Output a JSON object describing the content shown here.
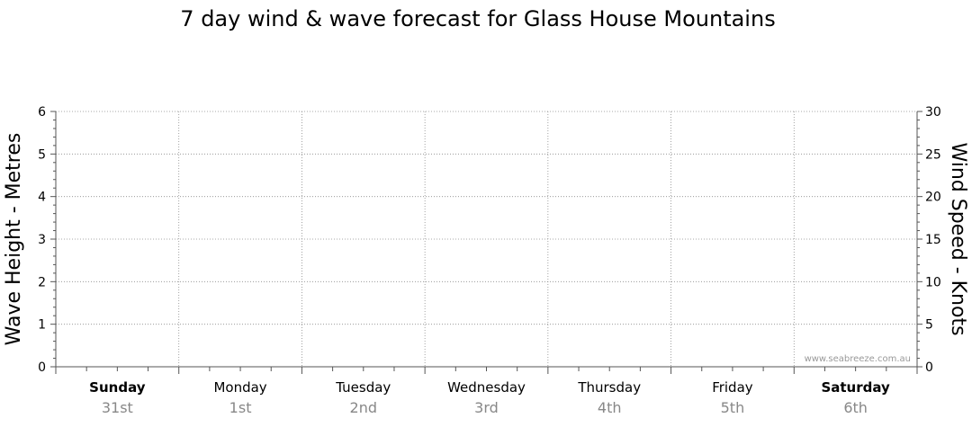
{
  "chart_data": {
    "type": "line",
    "title": "7 day wind & wave forecast for Glass House Mountains",
    "ylabel_left": "Wave Height - Metres",
    "ylabel_right": "Wind Speed - Knots",
    "ylim_left": [
      0,
      6
    ],
    "ylim_right": [
      0,
      30
    ],
    "yticks_left": [
      "0",
      "1",
      "2",
      "3",
      "4",
      "5",
      "6"
    ],
    "yticks_right": [
      "0",
      "5",
      "10",
      "15",
      "20",
      "25",
      "30"
    ],
    "grid": true,
    "days": [
      {
        "name": "Sunday",
        "date": "31st",
        "bold": true
      },
      {
        "name": "Monday",
        "date": "1st",
        "bold": false
      },
      {
        "name": "Tuesday",
        "date": "2nd",
        "bold": false
      },
      {
        "name": "Wednesday",
        "date": "3rd",
        "bold": false
      },
      {
        "name": "Thursday",
        "date": "4th",
        "bold": false
      },
      {
        "name": "Friday",
        "date": "5th",
        "bold": false
      },
      {
        "name": "Saturday",
        "date": "6th",
        "bold": true
      }
    ],
    "series": []
  },
  "watermark": "www.seabreeze.com.au"
}
